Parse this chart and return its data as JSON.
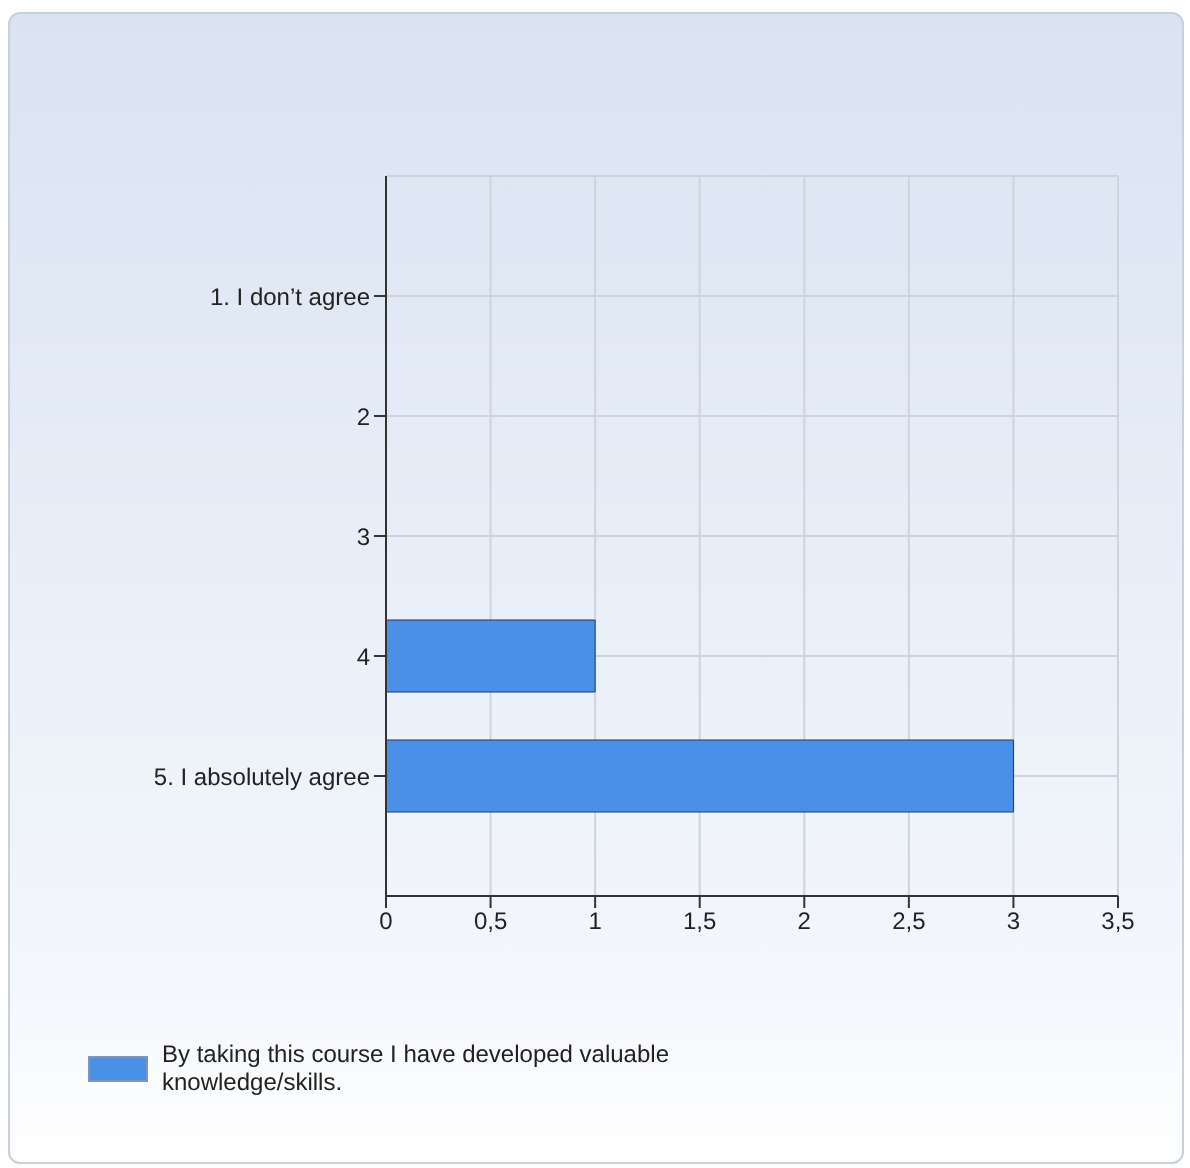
{
  "chart_data": {
    "type": "bar",
    "orientation": "horizontal",
    "categories": [
      "1.  I don’t agree",
      "2",
      "3",
      "4",
      "5. I absolutely agree"
    ],
    "series": [
      {
        "name": "By taking this course I have developed valuable knowledge/skills.",
        "color": "#4a8fe8",
        "values": [
          0,
          0,
          0,
          1,
          3
        ]
      }
    ],
    "xlim": [
      0,
      3.5
    ],
    "xticks": [
      {
        "value": 0,
        "label": "0"
      },
      {
        "value": 0.5,
        "label": "0,5"
      },
      {
        "value": 1,
        "label": "1"
      },
      {
        "value": 1.5,
        "label": "1,5"
      },
      {
        "value": 2,
        "label": "2"
      },
      {
        "value": 2.5,
        "label": "2,5"
      },
      {
        "value": 3,
        "label": "3"
      },
      {
        "value": 3.5,
        "label": "3,5"
      }
    ],
    "grid": true,
    "legend": "bottom"
  }
}
